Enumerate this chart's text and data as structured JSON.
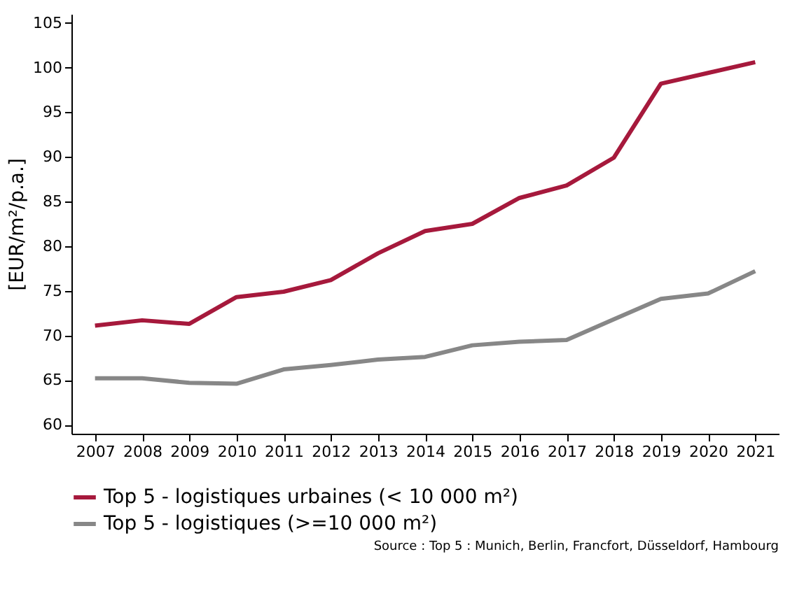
{
  "chart_data": {
    "type": "line",
    "ylabel": "[EUR/m²/p.a.]",
    "categories": [
      "2007",
      "2008",
      "2009",
      "2010",
      "2011",
      "2012",
      "2013",
      "2014",
      "2015",
      "2016",
      "2017",
      "2018",
      "2019",
      "2020",
      "2021"
    ],
    "series": [
      {
        "name": "Top 5 - logistiques urbaines (< 10 000 m²)",
        "color": "#a6193c",
        "values": [
          71.1,
          71.7,
          71.3,
          74.3,
          74.9,
          76.2,
          79.2,
          81.7,
          82.5,
          85.4,
          86.8,
          89.9,
          98.2,
          99.4,
          100.6
        ]
      },
      {
        "name": "Top 5 - logistiques (>=10 000 m²)",
        "color": "#878787",
        "values": [
          65.2,
          65.2,
          64.7,
          64.6,
          66.2,
          66.7,
          67.3,
          67.6,
          68.9,
          69.3,
          69.5,
          71.8,
          74.1,
          74.7,
          77.2
        ]
      }
    ],
    "ylim": [
      59,
      106
    ],
    "yticks": [
      60,
      65,
      70,
      75,
      80,
      85,
      90,
      95,
      100,
      105
    ],
    "grid": false,
    "legend": "bottom",
    "marker": "none",
    "line_style": "solid",
    "annotations": [
      "Source : Top 5 : Munich, Berlin, Francfort, Düsseldorf, Hambourg"
    ]
  }
}
